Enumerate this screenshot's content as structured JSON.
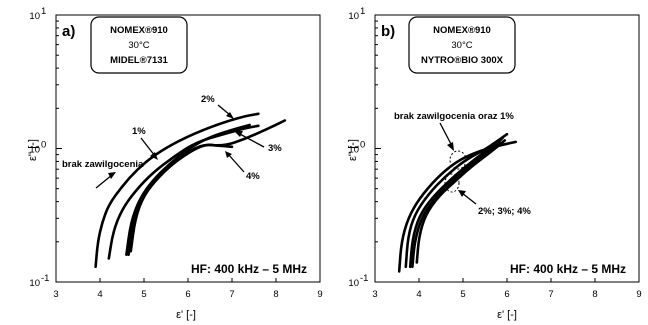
{
  "chart_data": [
    {
      "type": "line",
      "panel_label": "a)",
      "xlabel": "ε' [-]",
      "ylabel": "ε'' [-]",
      "xlim": [
        3,
        9
      ],
      "ylim_log": [
        0.1,
        10
      ],
      "y_scale": "log",
      "x_ticks": [
        "3",
        "4",
        "5",
        "6",
        "7",
        "8",
        "9"
      ],
      "y_ticks": [
        {
          "base": "10",
          "exp": "-1"
        },
        {
          "base": "10",
          "exp": "0"
        },
        {
          "base": "10",
          "exp": "1"
        }
      ],
      "legend": {
        "line1": "NOMEX®910",
        "line2": "30°C",
        "line3": "MIDEL®7131"
      },
      "frequency_label": "HF: 400 kHz – 5 MHz",
      "series": [
        {
          "name": "brak zawilgocenia",
          "points": [
            [
              3.9,
              0.13
            ],
            [
              3.95,
              0.2
            ],
            [
              4.05,
              0.28
            ],
            [
              4.2,
              0.38
            ],
            [
              4.5,
              0.52
            ],
            [
              4.85,
              0.7
            ],
            [
              5.25,
              0.9
            ],
            [
              5.8,
              1.15
            ],
            [
              6.5,
              1.45
            ],
            [
              7.2,
              1.72
            ],
            [
              7.6,
              1.82
            ]
          ]
        },
        {
          "name": "1%",
          "points": [
            [
              4.2,
              0.15
            ],
            [
              4.3,
              0.24
            ],
            [
              4.5,
              0.35
            ],
            [
              4.8,
              0.48
            ],
            [
              5.2,
              0.66
            ],
            [
              5.7,
              0.88
            ],
            [
              6.2,
              1.12
            ],
            [
              6.8,
              1.28
            ],
            [
              7.3,
              1.42
            ],
            [
              7.6,
              1.48
            ]
          ]
        },
        {
          "name": "2%",
          "points": [
            [
              4.6,
              0.16
            ],
            [
              4.7,
              0.28
            ],
            [
              4.9,
              0.42
            ],
            [
              5.2,
              0.58
            ],
            [
              5.6,
              0.78
            ],
            [
              6.05,
              1.02
            ],
            [
              6.5,
              1.22
            ],
            [
              7.0,
              1.38
            ],
            [
              7.4,
              1.5
            ]
          ]
        },
        {
          "name": "3%",
          "points": [
            [
              4.7,
              0.17
            ],
            [
              4.8,
              0.3
            ],
            [
              5.0,
              0.45
            ],
            [
              5.35,
              0.62
            ],
            [
              5.8,
              0.85
            ],
            [
              6.3,
              1.08
            ],
            [
              6.8,
              1.04
            ],
            [
              7.3,
              1.18
            ],
            [
              7.8,
              1.4
            ],
            [
              8.2,
              1.62
            ]
          ]
        },
        {
          "name": "4%",
          "points": [
            [
              4.65,
              0.16
            ],
            [
              4.75,
              0.28
            ],
            [
              4.95,
              0.43
            ],
            [
              5.3,
              0.6
            ],
            [
              5.75,
              0.82
            ],
            [
              6.35,
              1.08
            ],
            [
              6.7,
              1.05
            ],
            [
              7.0,
              1.03
            ]
          ]
        }
      ],
      "annotations": [
        {
          "text": "brak zawilgocenia"
        },
        {
          "text": "1%"
        },
        {
          "text": "2%"
        },
        {
          "text": "3%"
        },
        {
          "text": "4%"
        }
      ]
    },
    {
      "type": "line",
      "panel_label": "b)",
      "xlabel": "ε' [-]",
      "ylabel": "ε'' [-]",
      "xlim": [
        3,
        9
      ],
      "ylim_log": [
        0.1,
        10
      ],
      "y_scale": "log",
      "x_ticks": [
        "3",
        "4",
        "5",
        "6",
        "7",
        "8",
        "9"
      ],
      "y_ticks": [
        {
          "base": "10",
          "exp": "-1"
        },
        {
          "base": "10",
          "exp": "0"
        },
        {
          "base": "10",
          "exp": "1"
        }
      ],
      "legend": {
        "line1": "NOMEX®910",
        "line2": "30°C",
        "line3": "NYTRO®BIO 300X"
      },
      "frequency_label": "HF: 400 kHz – 5 MHz",
      "series": [
        {
          "name": "brak zawilgocenia",
          "points": [
            [
              3.55,
              0.12
            ],
            [
              3.6,
              0.2
            ],
            [
              3.75,
              0.3
            ],
            [
              4.0,
              0.42
            ],
            [
              4.4,
              0.6
            ],
            [
              4.85,
              0.8
            ],
            [
              5.3,
              0.94
            ],
            [
              5.8,
              1.05
            ],
            [
              6.2,
              1.12
            ]
          ]
        },
        {
          "name": "1%",
          "points": [
            [
              3.7,
              0.13
            ],
            [
              3.75,
              0.22
            ],
            [
              3.9,
              0.32
            ],
            [
              4.2,
              0.45
            ],
            [
              4.6,
              0.62
            ],
            [
              5.05,
              0.82
            ],
            [
              5.5,
              0.98
            ],
            [
              6.0,
              1.28
            ]
          ]
        },
        {
          "name": "2%",
          "points": [
            [
              3.85,
              0.13
            ],
            [
              3.9,
              0.2
            ],
            [
              4.05,
              0.3
            ],
            [
              4.3,
              0.4
            ],
            [
              4.7,
              0.55
            ],
            [
              5.1,
              0.72
            ],
            [
              5.5,
              0.9
            ],
            [
              5.9,
              1.2
            ]
          ]
        },
        {
          "name": "3%",
          "points": [
            [
              3.95,
              0.14
            ],
            [
              4.0,
              0.22
            ],
            [
              4.15,
              0.32
            ],
            [
              4.45,
              0.44
            ],
            [
              4.85,
              0.58
            ],
            [
              5.25,
              0.76
            ],
            [
              5.65,
              0.95
            ],
            [
              5.95,
              1.15
            ]
          ]
        },
        {
          "name": "4%",
          "points": [
            [
              3.8,
              0.13
            ],
            [
              3.85,
              0.21
            ],
            [
              4.0,
              0.31
            ],
            [
              4.3,
              0.43
            ],
            [
              4.75,
              0.6
            ],
            [
              5.2,
              0.8
            ],
            [
              5.6,
              1.0
            ],
            [
              5.85,
              1.1
            ]
          ]
        }
      ],
      "annotations": [
        {
          "text": "brak zawilgocenia oraz 1%"
        },
        {
          "text": "2%; 3%; 4%"
        }
      ]
    }
  ]
}
